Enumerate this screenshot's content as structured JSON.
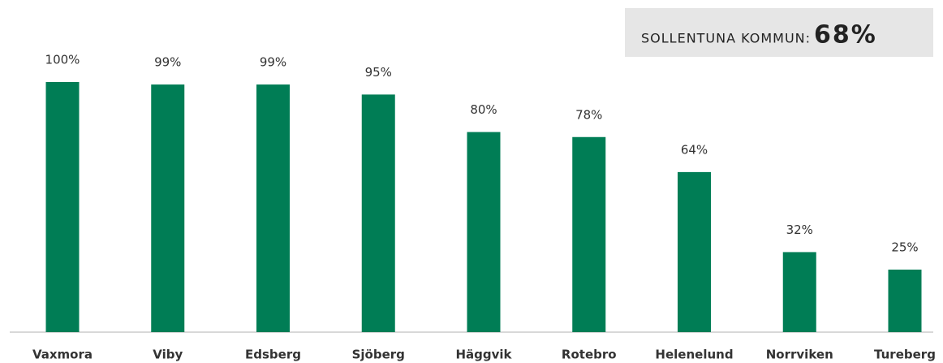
{
  "chart_data": {
    "type": "bar",
    "categories": [
      "Vaxmora",
      "Viby",
      "Edsberg",
      "Sjöberg",
      "Häggvik",
      "Rotebro",
      "Helenelund",
      "Norrviken",
      "Tureberg"
    ],
    "values": [
      100,
      99,
      99,
      95,
      80,
      78,
      64,
      32,
      25
    ],
    "value_labels": [
      "100%",
      "99%",
      "99%",
      "95%",
      "80%",
      "78%",
      "64%",
      "32%",
      "25%"
    ],
    "color": "#007d55",
    "summary": {
      "label": "SOLLENTUNA KOMMUN:",
      "value": "68%"
    }
  }
}
